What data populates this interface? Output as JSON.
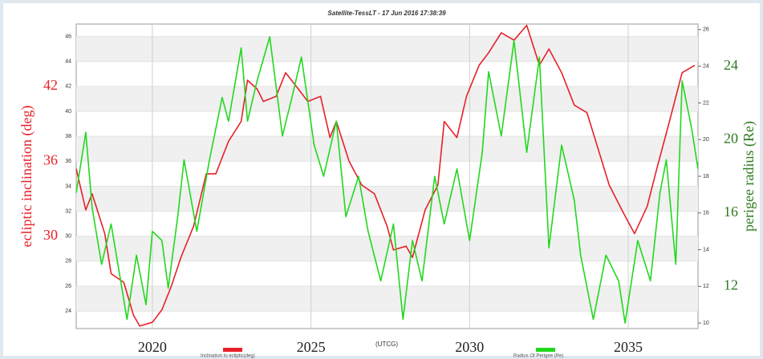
{
  "chart_data": {
    "type": "line",
    "title": "Satellite-TessLT - 17 Jun 2016 17:38:39",
    "x_axis_label": "(UTCG)",
    "y_axis_label": "ecliptic inclination (deg)",
    "y2_axis_label": "perigee radius (Re)",
    "xlim": [
      2017.6,
      2037.2
    ],
    "xticks": [
      2020,
      2025,
      2030,
      2035
    ],
    "ylim": [
      22.6,
      47
    ],
    "yticks": [
      24,
      26,
      28,
      30,
      32,
      34,
      36,
      38,
      40,
      42,
      44,
      46
    ],
    "y_big_labels": [
      42,
      36,
      30
    ],
    "y2lim": [
      9.7,
      26.3
    ],
    "y2ticks": [
      10,
      12,
      14,
      16,
      18,
      20,
      22,
      24,
      26
    ],
    "y2_big_labels": [
      24,
      20,
      16,
      12
    ],
    "grid": true,
    "legend_position": "bottom",
    "series": [
      {
        "name": "Inclination to ecliptic(deg)",
        "color": "#e8202a",
        "axis": "y",
        "x": [
          2017.6,
          2017.9,
          2018.1,
          2018.5,
          2018.7,
          2019.1,
          2019.4,
          2019.6,
          2020.0,
          2020.3,
          2020.6,
          2020.9,
          2021.3,
          2021.7,
          2022.0,
          2022.4,
          2022.8,
          2023.0,
          2023.3,
          2023.5,
          2023.9,
          2024.2,
          2024.6,
          2024.9,
          2025.3,
          2025.6,
          2025.8,
          2026.2,
          2026.6,
          2027.0,
          2027.4,
          2027.6,
          2028.0,
          2028.2,
          2028.6,
          2029.0,
          2029.2,
          2029.6,
          2029.9,
          2030.3,
          2030.6,
          2031.0,
          2031.4,
          2031.8,
          2032.2,
          2032.5,
          2032.9,
          2033.3,
          2033.7,
          2034.1,
          2034.4,
          2034.8,
          2035.2,
          2035.6,
          2035.9,
          2036.3,
          2036.7,
          2037.1
        ],
        "values": [
          35.4,
          32.1,
          33.4,
          30.2,
          27.0,
          26.3,
          23.7,
          22.8,
          23.1,
          24.1,
          26.0,
          28.3,
          30.8,
          35.0,
          35.0,
          37.6,
          39.2,
          42.5,
          41.8,
          40.8,
          41.2,
          43.1,
          41.8,
          40.8,
          41.2,
          37.9,
          39.2,
          36.0,
          34.1,
          33.4,
          30.8,
          28.9,
          29.2,
          28.3,
          32.1,
          34.1,
          39.2,
          37.9,
          41.2,
          43.7,
          44.7,
          46.3,
          45.7,
          46.9,
          43.7,
          45.0,
          43.1,
          40.5,
          39.9,
          36.6,
          34.1,
          32.1,
          30.2,
          32.4,
          35.4,
          39.2,
          43.1,
          43.7
        ]
      },
      {
        "name": "Radius Of Perigee (Re)",
        "color": "#22d81e",
        "axis": "y2",
        "x": [
          2017.6,
          2017.9,
          2018.1,
          2018.4,
          2018.7,
          2019.0,
          2019.2,
          2019.5,
          2019.8,
          2020.0,
          2020.3,
          2020.5,
          2020.8,
          2021.0,
          2021.4,
          2021.8,
          2022.2,
          2022.4,
          2022.8,
          2023.0,
          2023.3,
          2023.7,
          2024.1,
          2024.4,
          2024.7,
          2025.1,
          2025.4,
          2025.8,
          2026.1,
          2026.5,
          2026.8,
          2027.2,
          2027.6,
          2027.9,
          2028.2,
          2028.5,
          2028.9,
          2029.2,
          2029.6,
          2030.0,
          2030.4,
          2030.6,
          2031.0,
          2031.4,
          2031.8,
          2032.2,
          2032.5,
          2032.9,
          2033.3,
          2033.5,
          2033.9,
          2034.3,
          2034.7,
          2034.9,
          2035.3,
          2035.7,
          2036.0,
          2036.2,
          2036.5,
          2036.7,
          2037.0,
          2037.2
        ],
        "values": [
          17.1,
          20.4,
          16.3,
          13.2,
          15.4,
          12.3,
          10.2,
          13.7,
          11.0,
          15.0,
          14.5,
          11.9,
          15.8,
          18.9,
          15.0,
          18.9,
          22.3,
          21.0,
          25.0,
          21.0,
          23.2,
          25.6,
          20.2,
          22.3,
          24.5,
          19.7,
          18.0,
          21.0,
          15.8,
          18.0,
          15.0,
          12.3,
          15.4,
          10.2,
          14.5,
          12.3,
          18.0,
          15.4,
          18.4,
          14.5,
          19.3,
          23.7,
          20.2,
          25.4,
          19.3,
          24.5,
          14.1,
          19.7,
          16.7,
          13.7,
          10.2,
          13.7,
          12.3,
          10.0,
          14.5,
          12.3,
          17.1,
          18.9,
          13.2,
          23.2,
          20.6,
          18.4
        ]
      }
    ]
  }
}
